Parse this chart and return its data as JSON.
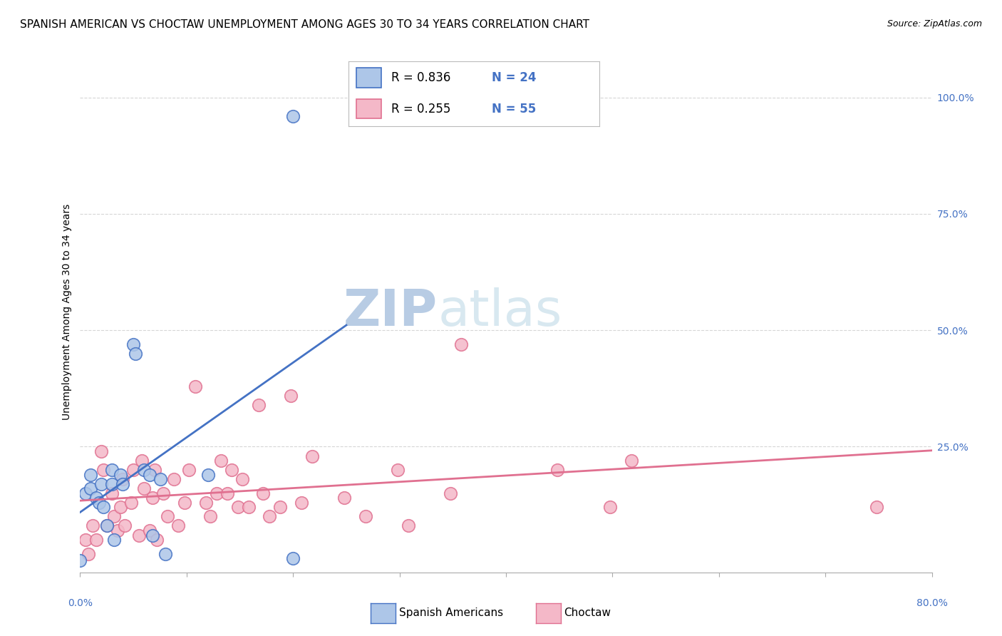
{
  "title": "SPANISH AMERICAN VS CHOCTAW UNEMPLOYMENT AMONG AGES 30 TO 34 YEARS CORRELATION CHART",
  "source": "Source: ZipAtlas.com",
  "ylabel": "Unemployment Among Ages 30 to 34 years",
  "xlim": [
    0.0,
    0.8
  ],
  "ylim": [
    -0.02,
    1.1
  ],
  "background_color": "#ffffff",
  "grid_color": "#cccccc",
  "sa_color": "#adc6e8",
  "sa_edge_color": "#4472c4",
  "choctaw_color": "#f4b8c8",
  "choctaw_edge_color": "#e07090",
  "sa_line_color": "#4472c4",
  "choctaw_line_color": "#e07090",
  "sa_R": 0.836,
  "sa_N": 24,
  "choctaw_R": 0.255,
  "choctaw_N": 55,
  "tick_color": "#4472c4",
  "sa_scatter_x": [
    0.0,
    0.005,
    0.01,
    0.01,
    0.015,
    0.018,
    0.02,
    0.022,
    0.025,
    0.03,
    0.03,
    0.032,
    0.038,
    0.04,
    0.05,
    0.052,
    0.06,
    0.065,
    0.068,
    0.075,
    0.08,
    0.12,
    0.2,
    0.2
  ],
  "sa_scatter_y": [
    0.005,
    0.15,
    0.19,
    0.16,
    0.14,
    0.13,
    0.17,
    0.12,
    0.08,
    0.2,
    0.17,
    0.05,
    0.19,
    0.17,
    0.47,
    0.45,
    0.2,
    0.19,
    0.06,
    0.18,
    0.02,
    0.19,
    0.96,
    0.01
  ],
  "choctaw_scatter_x": [
    0.005,
    0.008,
    0.012,
    0.015,
    0.02,
    0.022,
    0.025,
    0.03,
    0.032,
    0.035,
    0.038,
    0.04,
    0.042,
    0.048,
    0.05,
    0.055,
    0.058,
    0.06,
    0.065,
    0.068,
    0.07,
    0.072,
    0.078,
    0.082,
    0.088,
    0.092,
    0.098,
    0.102,
    0.108,
    0.118,
    0.122,
    0.128,
    0.132,
    0.138,
    0.142,
    0.148,
    0.152,
    0.158,
    0.168,
    0.172,
    0.178,
    0.188,
    0.198,
    0.208,
    0.218,
    0.248,
    0.268,
    0.298,
    0.308,
    0.348,
    0.358,
    0.448,
    0.498,
    0.518,
    0.748
  ],
  "choctaw_scatter_y": [
    0.05,
    0.02,
    0.08,
    0.05,
    0.24,
    0.2,
    0.08,
    0.15,
    0.1,
    0.07,
    0.12,
    0.18,
    0.08,
    0.13,
    0.2,
    0.06,
    0.22,
    0.16,
    0.07,
    0.14,
    0.2,
    0.05,
    0.15,
    0.1,
    0.18,
    0.08,
    0.13,
    0.2,
    0.38,
    0.13,
    0.1,
    0.15,
    0.22,
    0.15,
    0.2,
    0.12,
    0.18,
    0.12,
    0.34,
    0.15,
    0.1,
    0.12,
    0.36,
    0.13,
    0.23,
    0.14,
    0.1,
    0.2,
    0.08,
    0.15,
    0.47,
    0.2,
    0.12,
    0.22,
    0.12
  ],
  "title_fontsize": 11,
  "axis_label_fontsize": 10,
  "tick_fontsize": 10,
  "legend_fontsize": 13,
  "watermark_zip_fontsize": 52,
  "watermark_atlas_fontsize": 52,
  "source_fontsize": 9
}
